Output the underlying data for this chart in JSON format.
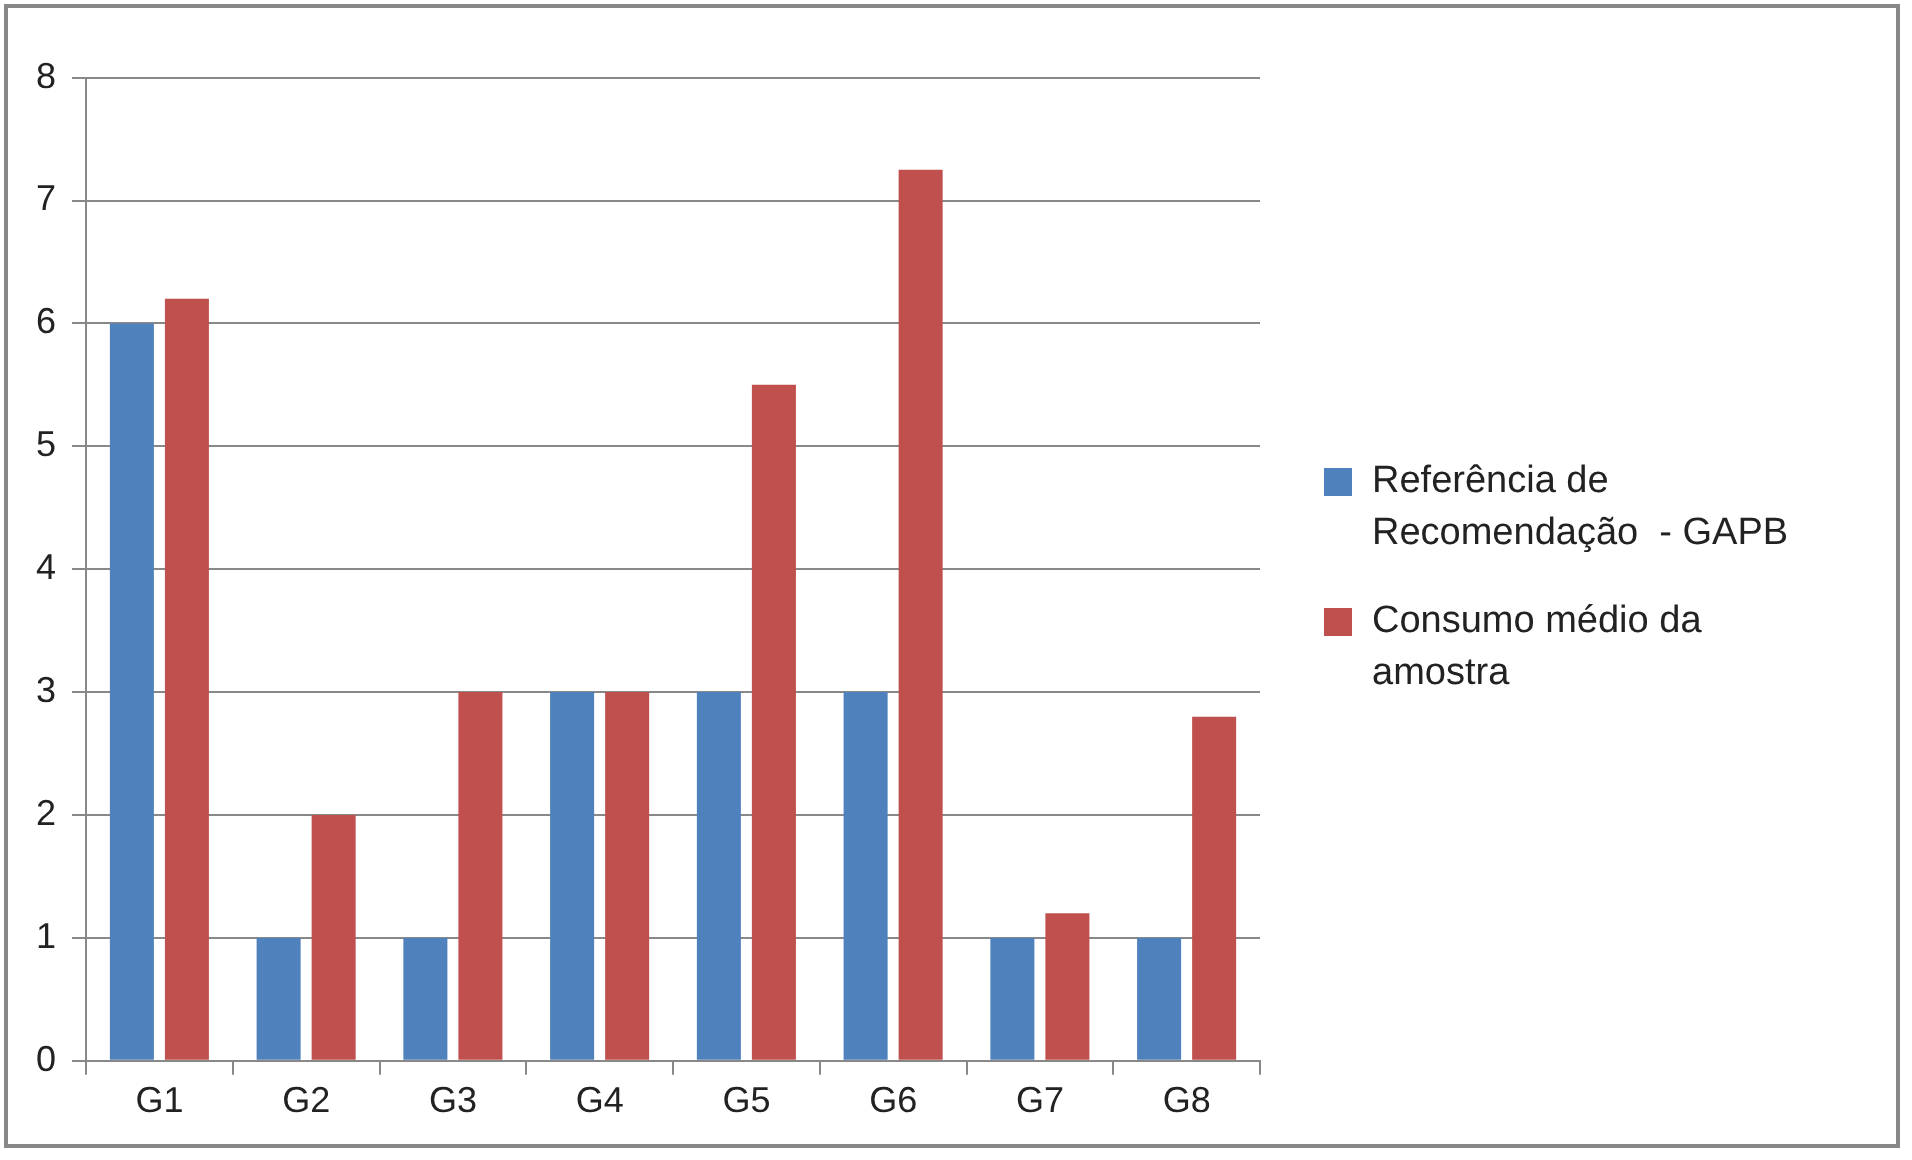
{
  "chart_data": {
    "type": "bar",
    "categories": [
      "G1",
      "G2",
      "G3",
      "G4",
      "G5",
      "G6",
      "G7",
      "G8"
    ],
    "series": [
      {
        "name": "Referência de Recomendação  - GAPB",
        "color": "#4f81bd",
        "values": [
          6,
          1,
          1,
          3,
          3,
          3,
          1,
          1
        ]
      },
      {
        "name": "Consumo médio da amostra",
        "color": "#c0504d",
        "values": [
          6.2,
          2,
          3,
          3,
          5.5,
          7.25,
          1.2,
          2.8
        ]
      }
    ],
    "ylim": [
      0,
      8
    ],
    "yticks": [
      0,
      1,
      2,
      3,
      4,
      5,
      6,
      7,
      8
    ],
    "grid": "y",
    "legend": "right"
  }
}
